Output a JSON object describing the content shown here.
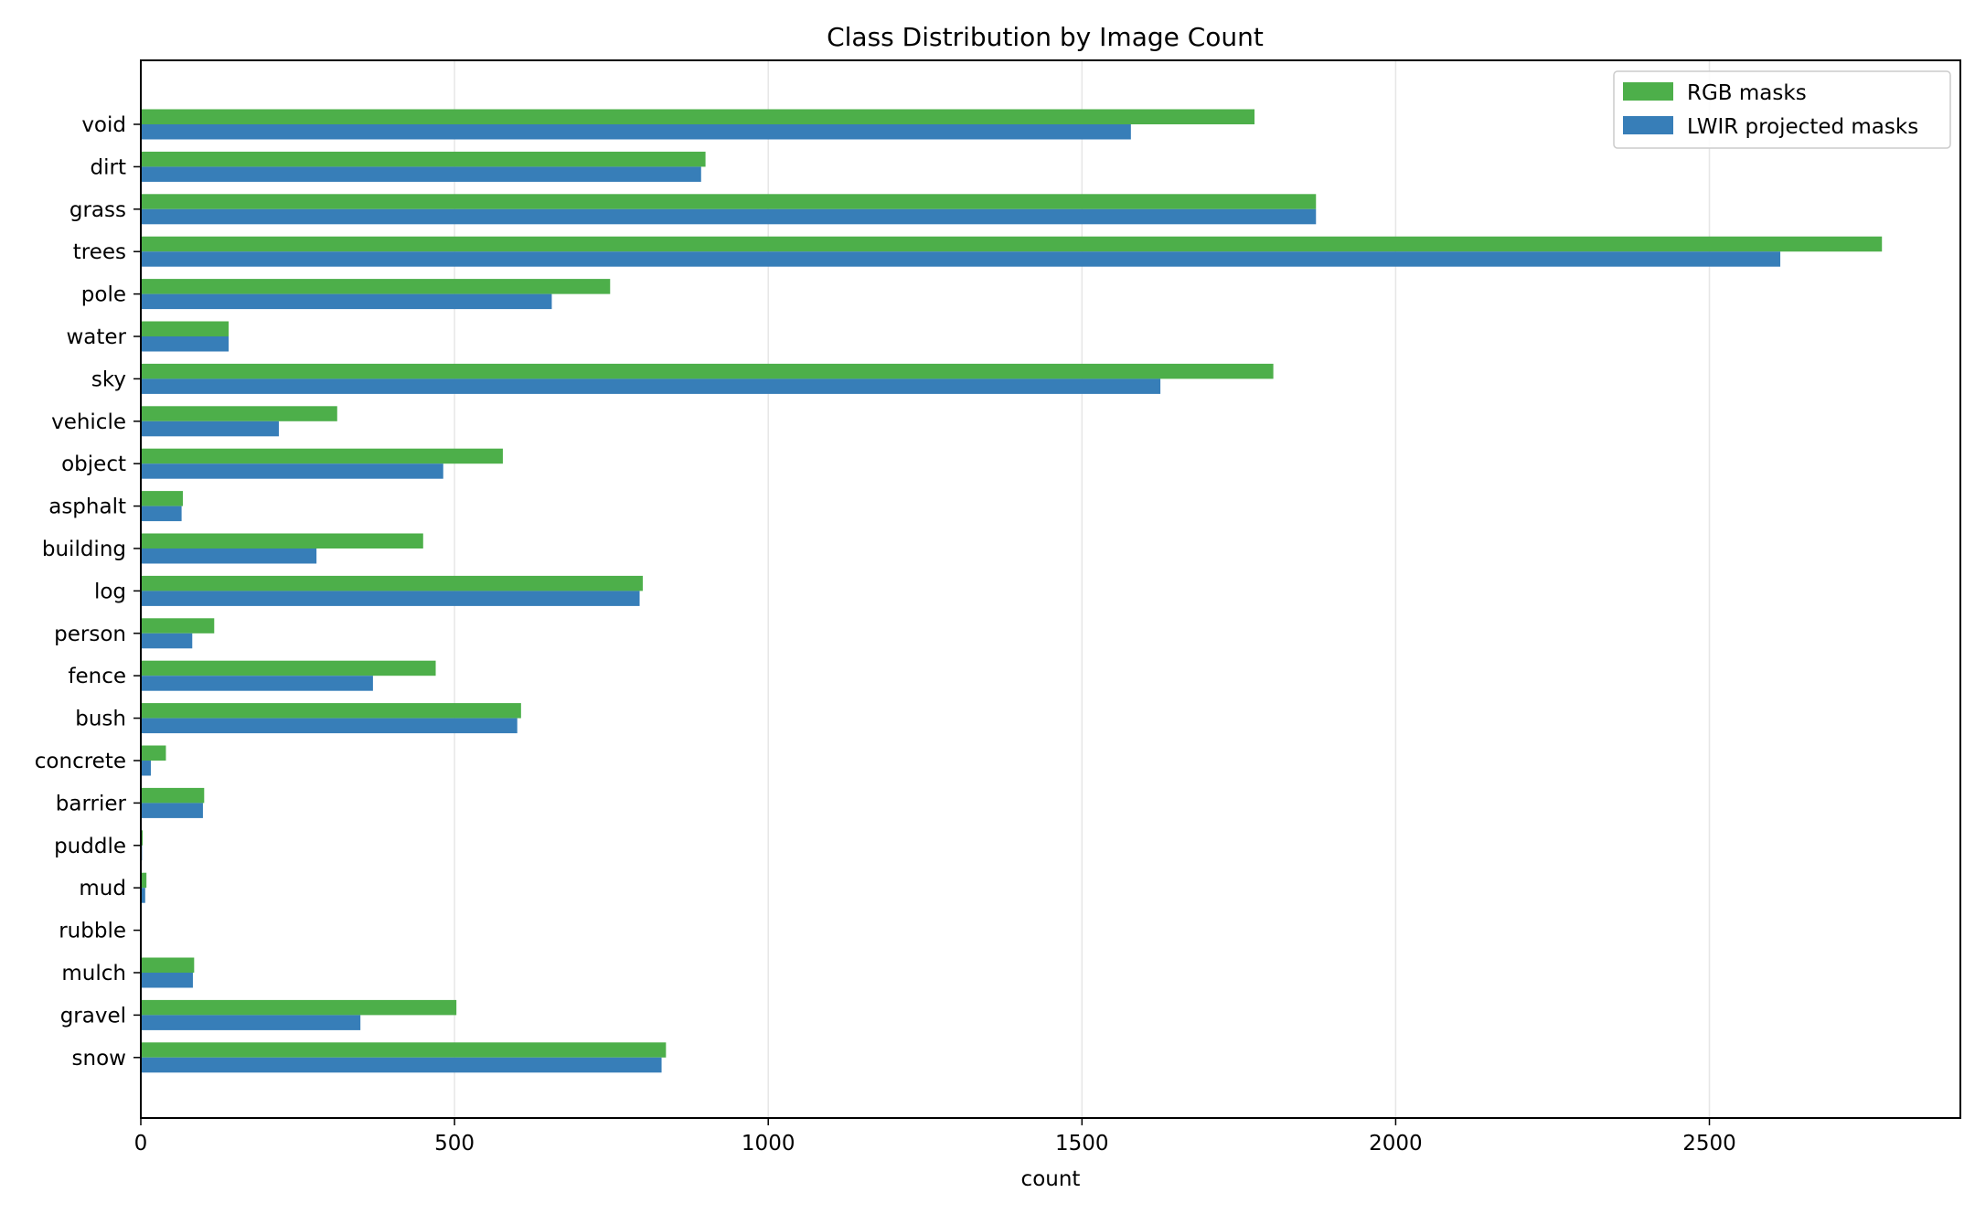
{
  "chart_data": {
    "type": "bar",
    "orientation": "horizontal",
    "title": "Class Distribution by Image Count",
    "xlabel": "count",
    "ylabel": "",
    "xlim": [
      0,
      2900
    ],
    "xticks": [
      0,
      500,
      1000,
      1500,
      2000,
      2500
    ],
    "grid": "x",
    "legend_position": "top-right",
    "categories": [
      "void",
      "dirt",
      "grass",
      "trees",
      "pole",
      "water",
      "sky",
      "vehicle",
      "object",
      "asphalt",
      "building",
      "log",
      "person",
      "fence",
      "bush",
      "concrete",
      "barrier",
      "puddle",
      "mud",
      "rubble",
      "mulch",
      "gravel",
      "snow"
    ],
    "series": [
      {
        "name": "RGB masks",
        "color": "#4daf4a",
        "values": [
          1775,
          900,
          1873,
          2775,
          748,
          140,
          1805,
          313,
          577,
          67,
          450,
          800,
          117,
          470,
          606,
          40,
          101,
          3,
          9,
          1,
          85,
          503,
          837
        ]
      },
      {
        "name": "LWIR projected masks",
        "color": "#377eb8",
        "values": [
          1578,
          893,
          1873,
          2613,
          655,
          140,
          1625,
          220,
          482,
          65,
          280,
          795,
          82,
          370,
          600,
          16,
          99,
          2,
          7,
          0,
          83,
          350,
          830
        ]
      }
    ]
  }
}
